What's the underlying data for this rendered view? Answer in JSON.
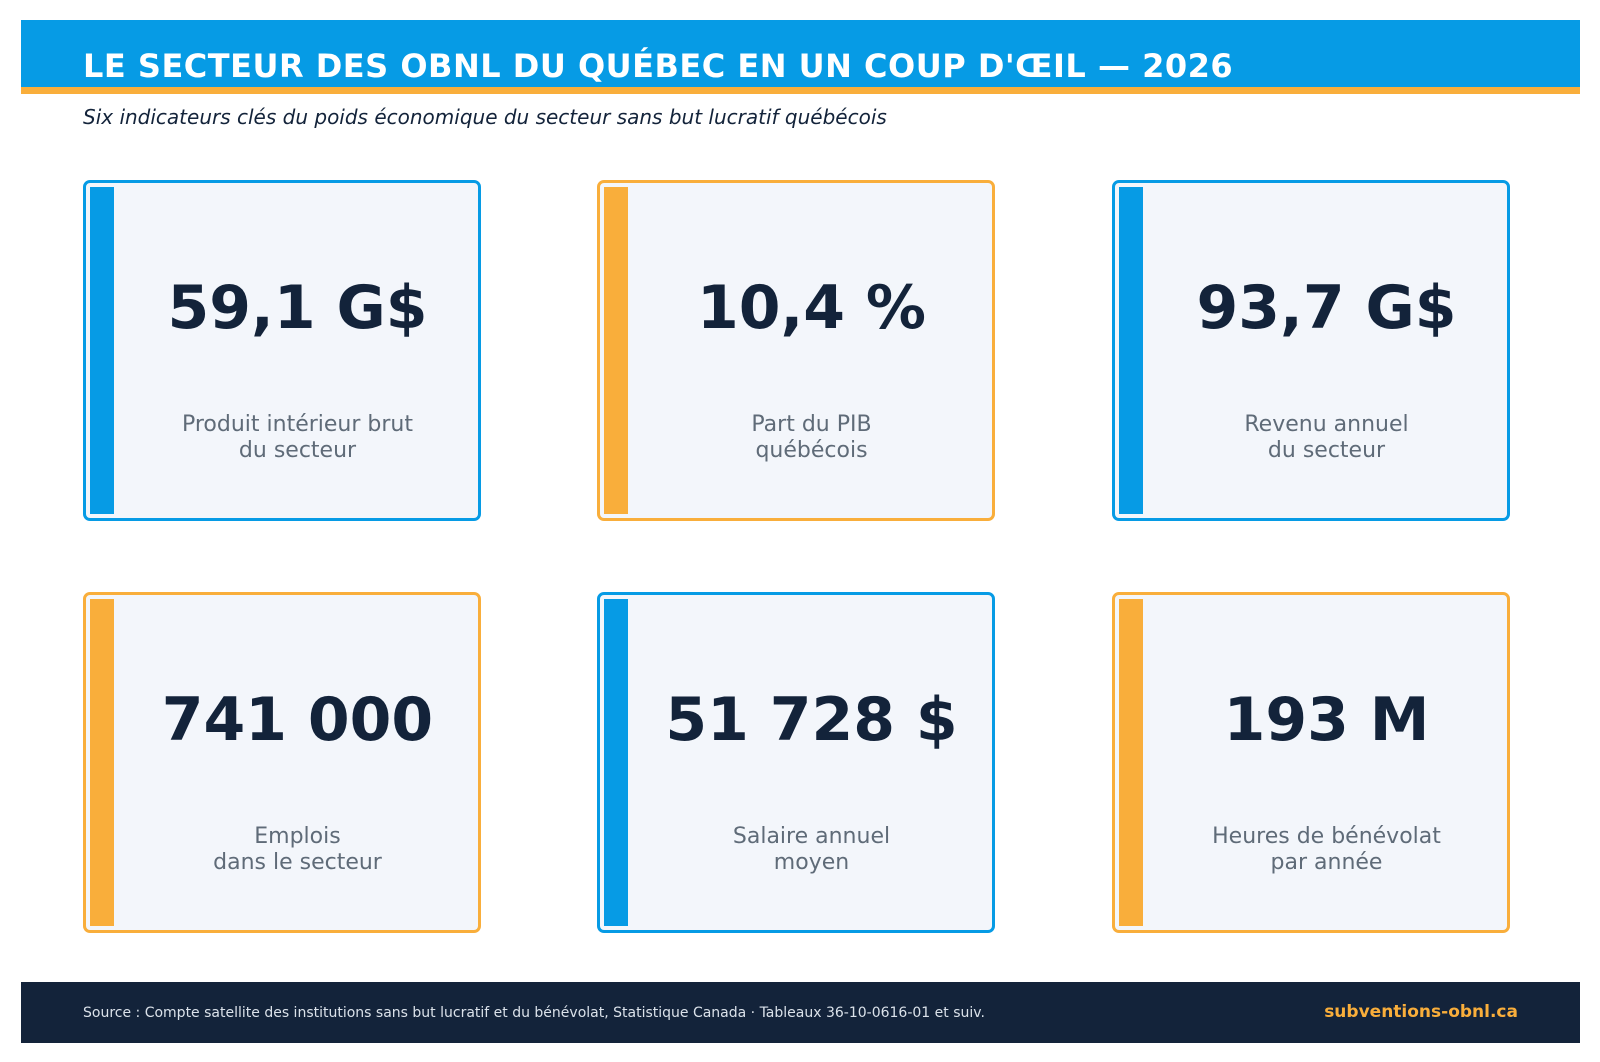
{
  "header": {
    "title": "LE SECTEUR DES OBNL DU QUÉBEC EN UN COUP D'ŒIL — 2026",
    "subtitle": "Six indicateurs clés du poids économique du secteur sans but lucratif québécois"
  },
  "colors": {
    "blue": "#069be5",
    "orange": "#f9ae3b",
    "navy": "#13233a"
  },
  "cards": [
    {
      "value": "59,1 G$",
      "label_line1": "Produit intérieur brut",
      "label_line2": "du secteur",
      "accent": "blue"
    },
    {
      "value": "10,4 %",
      "label_line1": "Part du PIB",
      "label_line2": "québécois",
      "accent": "orange"
    },
    {
      "value": "93,7 G$",
      "label_line1": "Revenu annuel",
      "label_line2": "du secteur",
      "accent": "blue"
    },
    {
      "value": "741 000",
      "label_line1": "Emplois",
      "label_line2": "dans le secteur",
      "accent": "orange"
    },
    {
      "value": "51 728 $",
      "label_line1": "Salaire annuel",
      "label_line2": "moyen",
      "accent": "blue"
    },
    {
      "value": "193 M",
      "label_line1": "Heures de bénévolat",
      "label_line2": "par année",
      "accent": "orange"
    }
  ],
  "footer": {
    "source": "Source : Compte satellite des institutions sans but lucratif et du bénévolat, Statistique Canada  ·  Tableaux 36-10-0616-01 et suiv.",
    "site": "subventions-obnl.ca"
  }
}
